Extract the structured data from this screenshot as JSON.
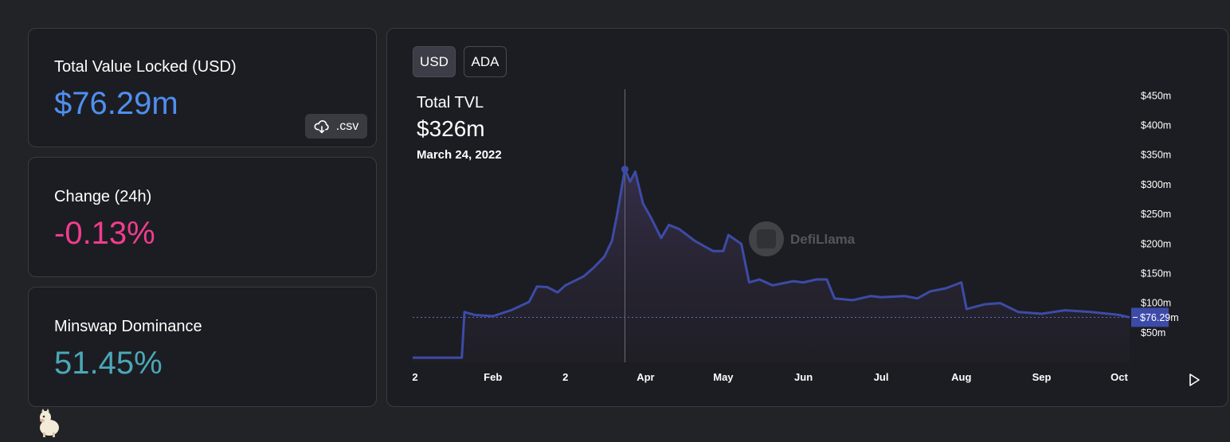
{
  "stats": {
    "tvl": {
      "label": "Total Value Locked (USD)",
      "value": "$76.29m",
      "csv_label": ".csv"
    },
    "change": {
      "label": "Change (24h)",
      "value": "-0.13%"
    },
    "dominance": {
      "label": "Minswap Dominance",
      "value": "51.45%"
    }
  },
  "toggles": {
    "usd": "USD",
    "ada": "ADA",
    "active": "USD"
  },
  "tooltip": {
    "title": "Total TVL",
    "value": "$326m",
    "date": "March 24, 2022"
  },
  "watermark": "DefiLlama",
  "colors": {
    "tvl_value": "#4f8ff0",
    "change_value": "#f23c8f",
    "dominance_value": "#4aa8b8",
    "series_line": "#3d4ba8",
    "current_badge": "#3d4ba8"
  },
  "chart_data": {
    "type": "area",
    "series": [
      {
        "x": [
          "2022-01-01",
          "2022-01-15",
          "2022-01-20",
          "2022-01-21",
          "2022-01-25",
          "2022-02-01",
          "2022-02-08",
          "2022-02-15",
          "2022-02-18",
          "2022-02-22",
          "2022-02-26",
          "2022-03-01",
          "2022-03-08",
          "2022-03-12",
          "2022-03-16",
          "2022-03-19",
          "2022-03-21",
          "2022-03-24",
          "2022-03-26",
          "2022-03-28",
          "2022-03-31",
          "2022-04-03",
          "2022-04-07",
          "2022-04-10",
          "2022-04-14",
          "2022-04-20",
          "2022-04-27",
          "2022-05-01",
          "2022-05-03",
          "2022-05-08",
          "2022-05-11",
          "2022-05-15",
          "2022-05-20",
          "2022-05-28",
          "2022-06-01",
          "2022-06-06",
          "2022-06-10",
          "2022-06-13",
          "2022-06-20",
          "2022-06-27",
          "2022-07-01",
          "2022-07-10",
          "2022-07-15",
          "2022-07-20",
          "2022-07-26",
          "2022-08-01",
          "2022-08-03",
          "2022-08-10",
          "2022-08-16",
          "2022-08-23",
          "2022-09-01",
          "2022-09-10",
          "2022-09-20",
          "2022-10-01",
          "2022-10-05"
        ],
        "y": [
          8,
          8,
          8,
          85,
          80,
          78,
          88,
          102,
          128,
          127,
          118,
          130,
          145,
          160,
          178,
          205,
          250,
          326,
          305,
          322,
          268,
          245,
          210,
          232,
          225,
          205,
          188,
          188,
          215,
          200,
          135,
          140,
          130,
          137,
          135,
          140,
          140,
          108,
          105,
          112,
          110,
          112,
          108,
          120,
          125,
          135,
          90,
          98,
          100,
          85,
          82,
          88,
          85,
          80,
          76
        ]
      }
    ],
    "current_value_label": "$76.29m",
    "hover_point": {
      "x": "2022-03-24",
      "y": 326
    },
    "y_ticks": [
      {
        "value": 50,
        "label": "$50m"
      },
      {
        "value": 100,
        "label": "$100m"
      },
      {
        "value": 150,
        "label": "$150m"
      },
      {
        "value": 200,
        "label": "$200m"
      },
      {
        "value": 250,
        "label": "$250m"
      },
      {
        "value": 300,
        "label": "$300m"
      },
      {
        "value": 350,
        "label": "$350m"
      },
      {
        "value": 400,
        "label": "$400m"
      },
      {
        "value": 450,
        "label": "$450m"
      }
    ],
    "x_ticks": [
      {
        "date": "2022-01-01",
        "label": "2"
      },
      {
        "date": "2022-02-01",
        "label": "Feb"
      },
      {
        "date": "2022-03-01",
        "label": "2"
      },
      {
        "date": "2022-04-01",
        "label": "Apr"
      },
      {
        "date": "2022-05-01",
        "label": "May"
      },
      {
        "date": "2022-06-01",
        "label": "Jun"
      },
      {
        "date": "2022-07-01",
        "label": "Jul"
      },
      {
        "date": "2022-08-01",
        "label": "Aug"
      },
      {
        "date": "2022-09-01",
        "label": "Sep"
      },
      {
        "date": "2022-10-01",
        "label": "Oct"
      }
    ],
    "xlim": [
      "2022-01-01",
      "2022-10-05"
    ],
    "ylim": [
      0,
      480
    ],
    "grid": false,
    "legend": false
  }
}
